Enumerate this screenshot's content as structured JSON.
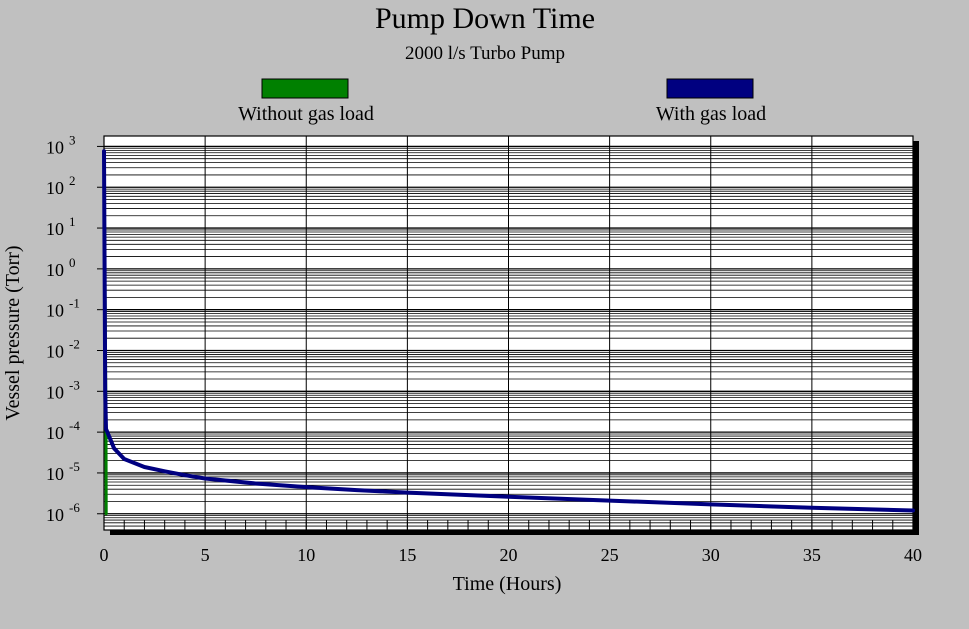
{
  "chart_data": {
    "type": "line",
    "title": "Pump Down Time",
    "subtitle": "2000 l/s Turbo Pump",
    "xlabel": "Time  (Hours)",
    "ylabel": "Vessel pressure  (Torr)",
    "x_ticks": [
      0,
      5,
      10,
      15,
      20,
      25,
      30,
      35,
      40
    ],
    "y_ticks": [
      {
        "base": "10",
        "exp": "3",
        "value": 1000
      },
      {
        "base": "10",
        "exp": "2",
        "value": 100
      },
      {
        "base": "10",
        "exp": "1",
        "value": 10
      },
      {
        "base": "10",
        "exp": "0",
        "value": 1
      },
      {
        "base": "10",
        "exp": "-1",
        "value": 0.1
      },
      {
        "base": "10",
        "exp": "-2",
        "value": 0.01
      },
      {
        "base": "10",
        "exp": "-3",
        "value": 0.001
      },
      {
        "base": "10",
        "exp": "-4",
        "value": 0.0001
      },
      {
        "base": "10",
        "exp": "-5",
        "value": 1e-05
      },
      {
        "base": "10",
        "exp": "-6",
        "value": 1e-06
      }
    ],
    "xlim": [
      0,
      40
    ],
    "ylim": [
      4e-07,
      1800
    ],
    "y_scale": "log",
    "grid": true,
    "legend_position": "top",
    "series": [
      {
        "name": "Without gas load",
        "color": "#008000",
        "points": [
          [
            0,
            760
          ],
          [
            0.05,
            0.5
          ],
          [
            0.1,
            0.0001
          ],
          [
            0.11,
            1e-06
          ]
        ]
      },
      {
        "name": "With gas load",
        "color": "#000080",
        "points": [
          [
            0,
            760
          ],
          [
            0.03,
            1
          ],
          [
            0.06,
            0.001
          ],
          [
            0.1,
            0.00012
          ],
          [
            0.5,
            4e-05
          ],
          [
            1,
            2.2e-05
          ],
          [
            2,
            1.4e-05
          ],
          [
            3,
            1.1e-05
          ],
          [
            4,
            8.8e-06
          ],
          [
            5,
            7.3e-06
          ],
          [
            7.5,
            5.5e-06
          ],
          [
            10,
            4.5e-06
          ],
          [
            12.5,
            3.8e-06
          ],
          [
            15,
            3.3e-06
          ],
          [
            20,
            2.6e-06
          ],
          [
            25,
            2.1e-06
          ],
          [
            30,
            1.7e-06
          ],
          [
            35,
            1.4e-06
          ],
          [
            40,
            1.2e-06
          ]
        ]
      }
    ]
  }
}
